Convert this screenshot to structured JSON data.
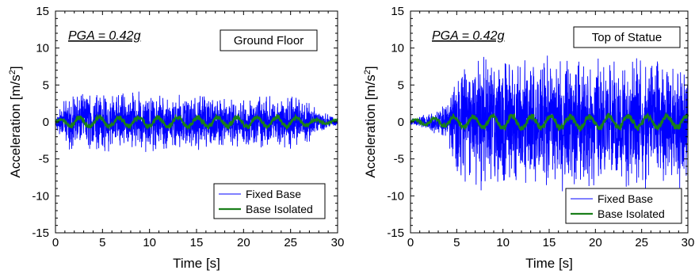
{
  "chart_data": [
    {
      "type": "line",
      "title": "Ground Floor",
      "annotation": "PGA = 0.42g",
      "xlabel": "Time [s]",
      "ylabel_main": "Acceleration [m/s",
      "ylabel_sup": "2",
      "ylabel_end": "]",
      "xlim": [
        0,
        30
      ],
      "ylim": [
        -15,
        15
      ],
      "xticks": [
        "0",
        "5",
        "10",
        "15",
        "20",
        "25",
        "30"
      ],
      "yticks": [
        "15",
        "10",
        "5",
        "0",
        "-5",
        "-10",
        "-15"
      ],
      "grid": false,
      "legend_position": "bottom-right",
      "series": [
        {
          "name": "Fixed Base",
          "color": "#0000ff",
          "start": 0,
          "end": 30,
          "peak": 4.3,
          "rms": 1.3,
          "envelope": [
            [
              0,
              0.2
            ],
            [
              1.5,
              1.0
            ],
            [
              6,
              1.0
            ],
            [
              26,
              0.85
            ],
            [
              28.5,
              0.3
            ],
            [
              30,
              0.15
            ]
          ]
        },
        {
          "name": "Base Isolated",
          "color": "#1a7f1a",
          "start": 0,
          "end": 30,
          "peak": 1.0,
          "rms": 0.38,
          "envelope": [
            [
              0,
              0.3
            ],
            [
              2,
              0.9
            ],
            [
              25,
              0.9
            ],
            [
              28,
              0.4
            ],
            [
              30,
              0.3
            ]
          ]
        }
      ]
    },
    {
      "type": "line",
      "title": "Top of Statue",
      "annotation": "PGA = 0.42g",
      "xlabel": "Time [s]",
      "ylabel_main": "Acceleration [m/s",
      "ylabel_sup": "2",
      "ylabel_end": "]",
      "xlim": [
        0,
        30
      ],
      "ylim": [
        -15,
        15
      ],
      "xticks": [
        "0",
        "5",
        "10",
        "15",
        "20",
        "25",
        "30"
      ],
      "yticks": [
        "15",
        "10",
        "5",
        "0",
        "-5",
        "-10",
        "-15"
      ],
      "grid": false,
      "legend_position": "bottom-right",
      "series": [
        {
          "name": "Fixed Base",
          "color": "#0000ff",
          "start": 0,
          "end": 30,
          "peak": 10.0,
          "rms": 3.2,
          "envelope": [
            [
              0,
              0.05
            ],
            [
              2,
              0.12
            ],
            [
              4,
              0.3
            ],
            [
              5,
              0.75
            ],
            [
              7,
              1.0
            ],
            [
              30,
              0.95
            ]
          ]
        },
        {
          "name": "Base Isolated",
          "color": "#1a7f1a",
          "start": 0,
          "end": 30,
          "peak": 1.3,
          "rms": 0.6,
          "envelope": [
            [
              0,
              0.3
            ],
            [
              3,
              0.6
            ],
            [
              10,
              0.9
            ],
            [
              30,
              0.85
            ]
          ]
        }
      ]
    }
  ]
}
